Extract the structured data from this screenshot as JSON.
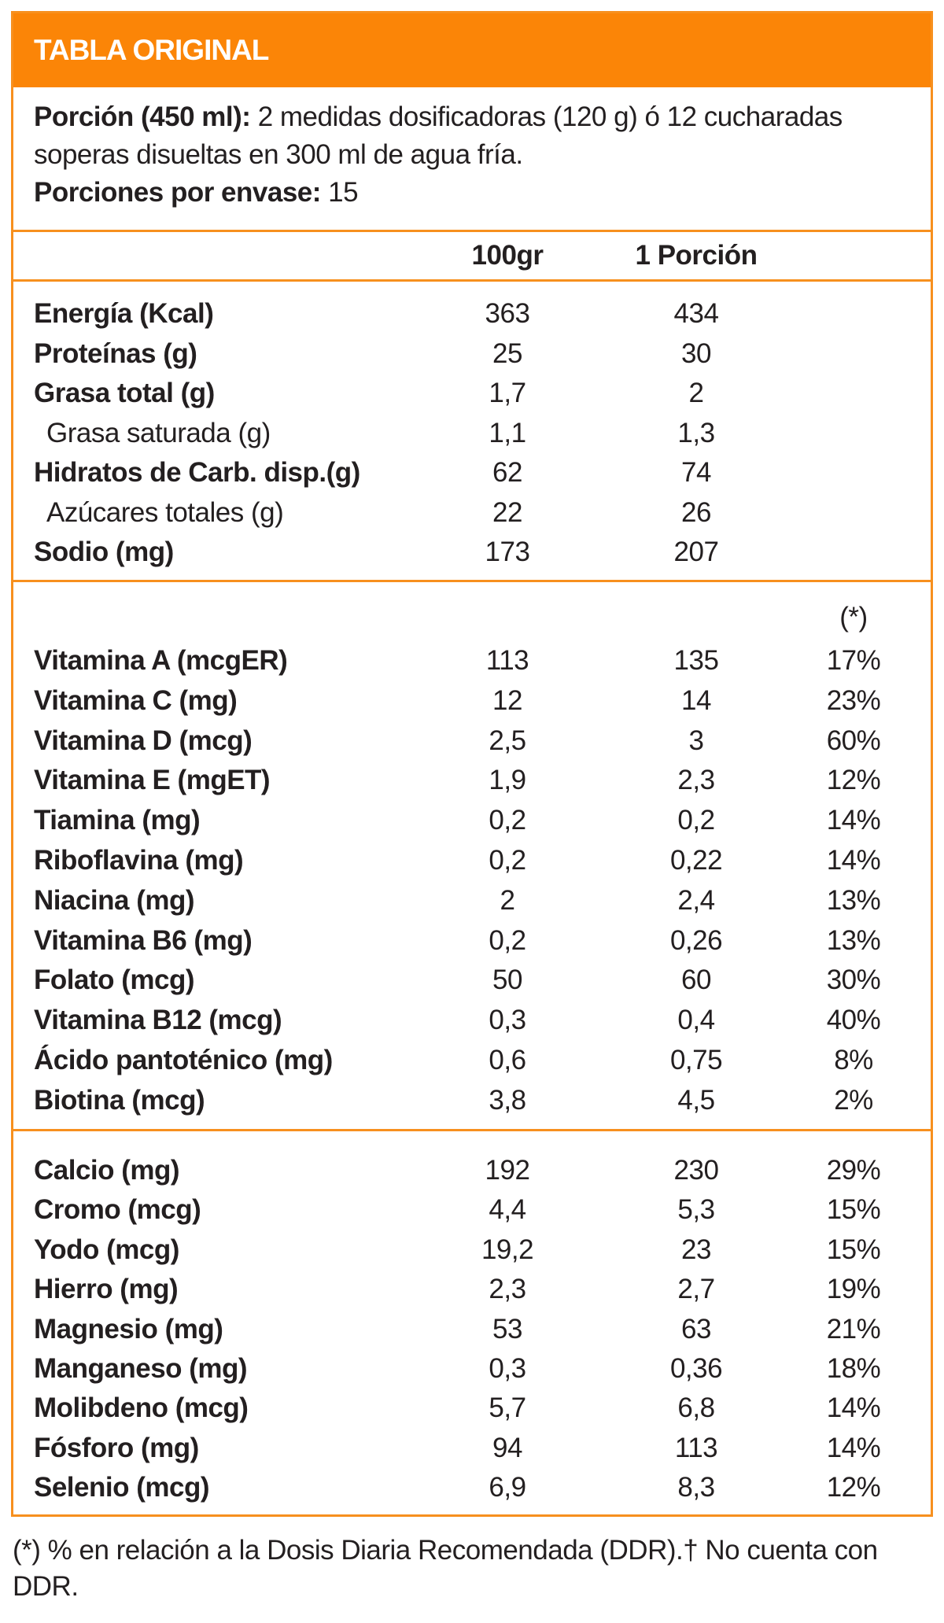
{
  "title": "TABLA ORIGINAL",
  "serving": {
    "label": "Porción (450 ml):",
    "text": "2 medidas dosificadoras (120 g) ó 12 cucharadas",
    "text2": "soperas disueltas en 300 ml de agua fría.",
    "per_container_label": "Porciones por envase:",
    "per_container_value": "15"
  },
  "columns": {
    "c1": "100gr",
    "c2": "1 Porción",
    "c3": "(*)"
  },
  "nutrients": [
    {
      "label": "Energía (Kcal)",
      "bold": true,
      "v1": "363",
      "v2": "434"
    },
    {
      "label": "Proteínas (g)",
      "bold": true,
      "v1": "25",
      "v2": "30"
    },
    {
      "label": "Grasa total (g)",
      "bold": true,
      "v1": "1,7",
      "v2": "2"
    },
    {
      "label": "Grasa saturada (g)",
      "bold": false,
      "v1": "1,1",
      "v2": "1,3"
    },
    {
      "label": "Hidratos de Carb. disp.(g)",
      "bold": true,
      "v1": "62",
      "v2": "74"
    },
    {
      "label": "Azúcares totales (g)",
      "bold": false,
      "v1": "22",
      "v2": "26"
    },
    {
      "label": "Sodio (mg)",
      "bold": true,
      "v1": "173",
      "v2": "207"
    }
  ],
  "vitamins": [
    {
      "label": "Vitamina A (mcgER)",
      "v1": "113",
      "v2": "135",
      "v3": "17%"
    },
    {
      "label": "Vitamina C (mg)",
      "v1": "12",
      "v2": "14",
      "v3": "23%"
    },
    {
      "label": "Vitamina D (mcg)",
      "v1": "2,5",
      "v2": "3",
      "v3": "60%"
    },
    {
      "label": "Vitamina E (mgET)",
      "v1": "1,9",
      "v2": "2,3",
      "v3": "12%"
    },
    {
      "label": "Tiamina (mg)",
      "v1": "0,2",
      "v2": "0,2",
      "v3": "14%"
    },
    {
      "label": "Riboflavina (mg)",
      "v1": "0,2",
      "v2": "0,22",
      "v3": "14%"
    },
    {
      "label": "Niacina (mg)",
      "v1": "2",
      "v2": "2,4",
      "v3": "13%"
    },
    {
      "label": "Vitamina B6 (mg)",
      "v1": "0,2",
      "v2": "0,26",
      "v3": "13%"
    },
    {
      "label": "Folato (mcg)",
      "v1": "50",
      "v2": "60",
      "v3": "30%"
    },
    {
      "label": "Vitamina B12 (mcg)",
      "v1": "0,3",
      "v2": "0,4",
      "v3": "40%"
    },
    {
      "label": "Ácido pantoténico (mg)",
      "v1": "0,6",
      "v2": "0,75",
      "v3": "8%"
    },
    {
      "label": "Biotina (mcg)",
      "v1": "3,8",
      "v2": "4,5",
      "v3": "2%"
    }
  ],
  "minerals": [
    {
      "label": "Calcio (mg)",
      "v1": "192",
      "v2": "230",
      "v3": "29%"
    },
    {
      "label": "Cromo (mcg)",
      "v1": "4,4",
      "v2": "5,3",
      "v3": "15%"
    },
    {
      "label": "Yodo (mcg)",
      "v1": "19,2",
      "v2": "23",
      "v3": "15%"
    },
    {
      "label": "Hierro (mg)",
      "v1": "2,3",
      "v2": "2,7",
      "v3": "19%"
    },
    {
      "label": "Magnesio (mg)",
      "v1": "53",
      "v2": "63",
      "v3": "21%"
    },
    {
      "label": "Manganeso (mg)",
      "v1": "0,3",
      "v2": "0,36",
      "v3": "18%"
    },
    {
      "label": "Molibdeno (mcg)",
      "v1": "5,7",
      "v2": "6,8",
      "v3": "14%"
    },
    {
      "label": "Fósforo (mg)",
      "v1": "94",
      "v2": "113",
      "v3": "14%"
    },
    {
      "label": "Selenio (mcg)",
      "v1": "6,9",
      "v2": "8,3",
      "v3": "12%"
    }
  ],
  "footnote": "(*) % en relación a la Dosis Diaria Recomendada (DDR).† No cuenta con DDR.",
  "colors": {
    "accent": "#fb8507",
    "border": "#f7901e",
    "text": "#231f20"
  }
}
